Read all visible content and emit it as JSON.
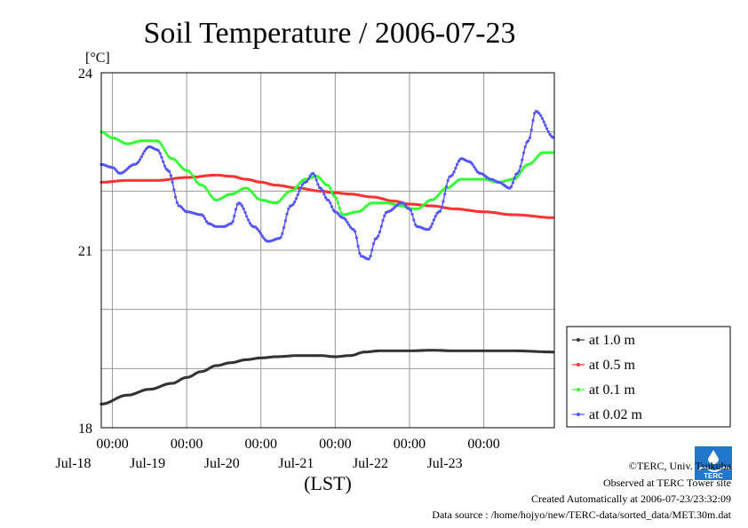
{
  "chart_data": {
    "type": "line",
    "title": "Soil Temperature / 2006-07-23",
    "ylabel": "[°C]",
    "xlabel": "(LST)",
    "ylim": [
      18,
      24
    ],
    "yticks": [
      "24",
      "21",
      "18"
    ],
    "xlim_days_from_jul17_0000": [
      0.85,
      6.95
    ],
    "xtick_time_label": "00:00",
    "xtick_dates": [
      "Jul-18",
      "Jul-19",
      "Jul-20",
      "Jul-21",
      "Jul-22",
      "Jul-23"
    ],
    "grid": true,
    "legend_position": "right",
    "series": [
      {
        "name": "at 1.0 m",
        "color": "#333333",
        "x": [
          0.85,
          1.2,
          1.5,
          1.8,
          2.0,
          2.2,
          2.4,
          2.6,
          2.8,
          3.0,
          3.2,
          3.5,
          3.8,
          4.0,
          4.2,
          4.4,
          4.6,
          4.8,
          5.0,
          5.3,
          5.6,
          6.0,
          6.4,
          6.95
        ],
        "y": [
          18.4,
          18.55,
          18.65,
          18.75,
          18.85,
          18.95,
          19.05,
          19.1,
          19.15,
          19.18,
          19.2,
          19.22,
          19.22,
          19.2,
          19.22,
          19.28,
          19.3,
          19.3,
          19.3,
          19.31,
          19.3,
          19.3,
          19.3,
          19.28
        ]
      },
      {
        "name": "at 0.5 m",
        "color": "#ff3333",
        "x": [
          0.85,
          1.2,
          1.6,
          2.0,
          2.4,
          2.6,
          2.8,
          3.0,
          3.2,
          3.5,
          3.8,
          4.0,
          4.2,
          4.5,
          4.8,
          5.0,
          5.3,
          5.6,
          6.0,
          6.4,
          6.95
        ],
        "y": [
          22.15,
          22.18,
          22.18,
          22.23,
          22.27,
          22.25,
          22.2,
          22.15,
          22.1,
          22.05,
          22.0,
          21.97,
          21.95,
          21.9,
          21.83,
          21.78,
          21.75,
          21.7,
          21.65,
          21.6,
          21.55
        ]
      },
      {
        "name": "at 0.1 m",
        "color": "#33ff33",
        "x": [
          0.85,
          1.0,
          1.2,
          1.4,
          1.6,
          1.8,
          2.0,
          2.2,
          2.4,
          2.6,
          2.8,
          3.0,
          3.2,
          3.4,
          3.6,
          3.75,
          3.9,
          4.0,
          4.1,
          4.3,
          4.5,
          4.7,
          4.9,
          5.0,
          5.1,
          5.3,
          5.5,
          5.7,
          5.8,
          6.0,
          6.2,
          6.4,
          6.6,
          6.8,
          6.95
        ],
        "y": [
          23.0,
          22.9,
          22.8,
          22.85,
          22.85,
          22.55,
          22.35,
          22.1,
          21.85,
          21.95,
          22.05,
          21.85,
          21.8,
          22.0,
          22.2,
          22.25,
          22.1,
          21.9,
          21.6,
          21.65,
          21.8,
          21.8,
          21.75,
          21.7,
          21.7,
          21.85,
          22.05,
          22.2,
          22.2,
          22.2,
          22.15,
          22.2,
          22.45,
          22.65,
          22.65
        ]
      },
      {
        "name": "at 0.02 m",
        "color": "#5555ff",
        "x": [
          0.85,
          1.0,
          1.1,
          1.3,
          1.5,
          1.6,
          1.75,
          1.9,
          2.0,
          2.2,
          2.3,
          2.4,
          2.5,
          2.6,
          2.7,
          2.9,
          3.1,
          3.25,
          3.4,
          3.6,
          3.7,
          3.8,
          3.9,
          4.0,
          4.1,
          4.25,
          4.35,
          4.45,
          4.55,
          4.7,
          4.9,
          5.0,
          5.1,
          5.25,
          5.4,
          5.55,
          5.7,
          5.8,
          5.95,
          6.1,
          6.2,
          6.35,
          6.45,
          6.6,
          6.7,
          6.95
        ],
        "y": [
          22.45,
          22.4,
          22.3,
          22.45,
          22.75,
          22.7,
          22.35,
          21.75,
          21.65,
          21.6,
          21.45,
          21.4,
          21.4,
          21.45,
          21.8,
          21.4,
          21.15,
          21.2,
          21.75,
          22.15,
          22.3,
          22.05,
          21.85,
          21.65,
          21.55,
          21.35,
          20.9,
          20.85,
          21.2,
          21.65,
          21.8,
          21.7,
          21.4,
          21.35,
          21.65,
          22.25,
          22.55,
          22.5,
          22.3,
          22.2,
          22.15,
          22.05,
          22.3,
          22.85,
          23.35,
          22.9
        ]
      }
    ]
  },
  "footer": {
    "copyright": "©TERC, Univ. Tsukuba",
    "observed": "Observed at TERC Tower site",
    "created": "Created Automatically at 2006-07-23/23:32:09",
    "source": "Data source : /home/hojyo/new/TERC-data/sorted_data/MET.30m.dat"
  },
  "logo_text": "TERC",
  "colors": {
    "grid": "#999999",
    "frame": "#000000"
  }
}
